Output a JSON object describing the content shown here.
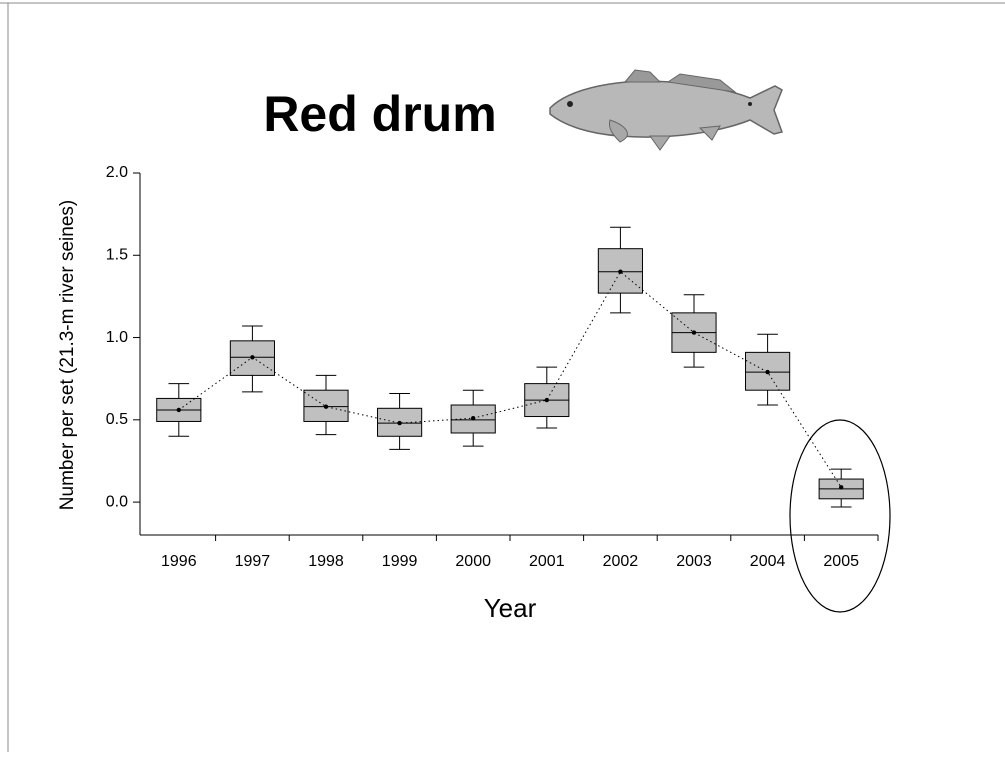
{
  "chart_data": {
    "type": "box",
    "title": "Red drum",
    "x_label": "Year",
    "y_label": "Number per set (21.3-m river seines)",
    "categories": [
      "1996",
      "1997",
      "1998",
      "1999",
      "2000",
      "2001",
      "2002",
      "2003",
      "2004",
      "2005"
    ],
    "whisker_low": [
      0.4,
      0.67,
      0.41,
      0.32,
      0.34,
      0.45,
      1.15,
      0.82,
      0.59,
      -0.03
    ],
    "q1": [
      0.49,
      0.77,
      0.49,
      0.4,
      0.42,
      0.52,
      1.27,
      0.91,
      0.68,
      0.02
    ],
    "median": [
      0.56,
      0.88,
      0.58,
      0.48,
      0.5,
      0.62,
      1.4,
      1.03,
      0.79,
      0.08
    ],
    "q3": [
      0.63,
      0.98,
      0.68,
      0.57,
      0.59,
      0.72,
      1.54,
      1.15,
      0.91,
      0.14
    ],
    "whisker_high": [
      0.72,
      1.07,
      0.77,
      0.66,
      0.68,
      0.82,
      1.67,
      1.26,
      1.02,
      0.2
    ],
    "mean": [
      0.56,
      0.88,
      0.58,
      0.48,
      0.51,
      0.62,
      1.4,
      1.03,
      0.79,
      0.09
    ],
    "color": "#c0c0c0",
    "ylim": [
      -0.2,
      2.0
    ],
    "yticks": [
      {
        "value": 0,
        "label": "0.0"
      },
      0.5,
      {
        "value": 1,
        "label": "1.0"
      },
      1.5,
      {
        "value": 2,
        "label": "2.0"
      }
    ]
  }
}
